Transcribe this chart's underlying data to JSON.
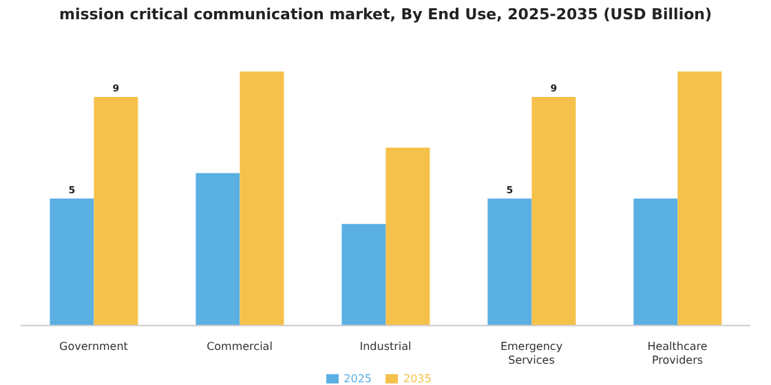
{
  "chart_data": {
    "type": "bar",
    "title": "mission critical communication market, By End Use, 2025-2035 (USD Billion)",
    "categories": [
      "Government",
      "Commercial",
      "Industrial",
      "Emergency Services",
      "Healthcare Providers"
    ],
    "series": [
      {
        "name": "2025",
        "color": "#5aafe3",
        "values": [
          5,
          6,
          4,
          5,
          5
        ],
        "value_labels": [
          "5",
          null,
          null,
          "5",
          null
        ]
      },
      {
        "name": "2035",
        "color": "#f5c14a",
        "values": [
          9,
          10,
          7,
          9,
          10
        ],
        "value_labels": [
          "9",
          null,
          null,
          "9",
          null
        ]
      }
    ],
    "legend": "bottom",
    "grid": false
  }
}
